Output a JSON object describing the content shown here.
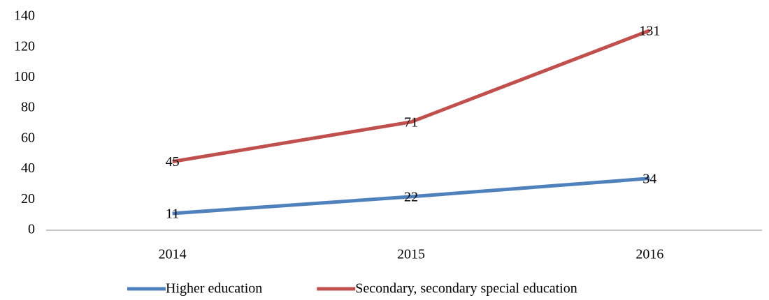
{
  "chart_data": {
    "type": "line",
    "categories": [
      "2014",
      "2015",
      "2016"
    ],
    "series": [
      {
        "name": "Higher education",
        "color": "#4f81bd",
        "values": [
          11,
          22,
          34
        ]
      },
      {
        "name": "Secondary, secondary special education",
        "color": "#c0504d",
        "values": [
          45,
          71,
          131
        ]
      }
    ],
    "ylim": [
      0,
      140
    ],
    "yticks": [
      0,
      20,
      40,
      60,
      80,
      100,
      120,
      140
    ],
    "grid": false,
    "legend": "bottom"
  }
}
